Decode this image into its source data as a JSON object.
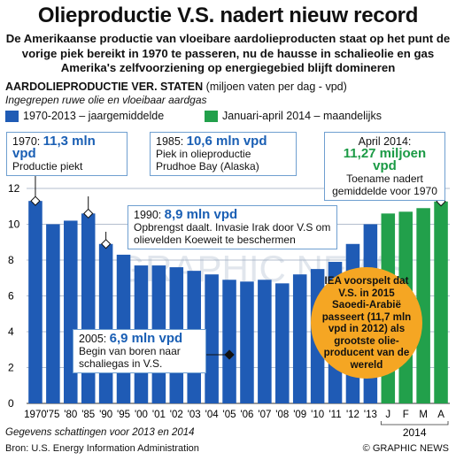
{
  "title": "Olieproductie V.S. nadert nieuw record",
  "subtitle": "De Amerikaanse productie van vloeibare aardolieproducten staat op het punt de vorige piek bereikt in 1970 te passeren, nu de hausse in schalieolie en gas Amerika's zelfvoorziening op energiegebied blijft domineren",
  "chart_heading_bold": "AARDOLIEPRODUCTIE VER. STATEN",
  "chart_heading_unit": "(miljoen vaten per dag - vpd)",
  "chart_subheading": "Ingegrepen ruwe olie en vloeibaar aardgas",
  "legend": [
    {
      "label": "1970-2013 – jaargemiddelde",
      "color": "#1f5bb5"
    },
    {
      "label": "Januari-april 2014 – maandelijks",
      "color": "#22a04b"
    }
  ],
  "callouts": {
    "c1970": {
      "year": "1970:",
      "value": "11,3 mln vpd",
      "text": "Productie piekt"
    },
    "c1985": {
      "year": "1985:",
      "value": "10,6 mln vpd",
      "text": "Piek in olieproductie Prudhoe Bay (Alaska)"
    },
    "c1990": {
      "year": "1990:",
      "value": "8,9 mln vpd",
      "text": "Opbrengst daalt. Invasie Irak door V.S om olievelden Koeweit te beschermen"
    },
    "c2005": {
      "year": "2005:",
      "value": "6,9 mln vpd",
      "text": "Begin van boren naar schaliegas in V.S."
    },
    "c2014": {
      "year": "April 2014:",
      "value": "11,27 miljoen vpd",
      "text": "Toename nadert gemiddelde voor 1970"
    }
  },
  "iea_note": "IEA voorspelt dat V.S. in 2015 Saoedi-Arabië passeert (11,7 mln vpd in 2012) als grootste olie-producent van de wereld",
  "watermark": "GRAPHIC NEWS",
  "footnote": "Gegevens schattingen voor 2013 en 2014",
  "source": "Bron: U.S. Energy Information Administration",
  "credit": "© GRAPHIC NEWS",
  "colors": {
    "blue": "#1f5bb5",
    "green": "#22a04b",
    "grid": "#9aa8bd",
    "accent_blue": "#1a5fb4"
  },
  "chart_data": {
    "type": "bar",
    "ylim": [
      0,
      12
    ],
    "yticks": [
      0,
      2,
      4,
      6,
      8,
      10,
      12
    ],
    "x_tick_labels": [
      "1970",
      "'75",
      "'80",
      "'85",
      "'90",
      "'95",
      "'00",
      "'01",
      "'02",
      "'03",
      "'04",
      "'05",
      "'06",
      "'07",
      "'08",
      "'09",
      "'10",
      "'11",
      "'12",
      "'13",
      "J",
      "F",
      "M",
      "A"
    ],
    "x_group_label": "2014",
    "series": [
      {
        "name": "1970-2013 – jaargemiddelde",
        "color": "#1f5bb5",
        "values": [
          11.3,
          10.0,
          10.2,
          10.6,
          8.9,
          8.3,
          7.7,
          7.7,
          7.6,
          7.4,
          7.2,
          6.9,
          6.8,
          6.9,
          6.7,
          7.2,
          7.5,
          7.9,
          8.9,
          10.0,
          null,
          null,
          null,
          null
        ]
      },
      {
        "name": "Januari-april 2014 – maandelijks",
        "color": "#22a04b",
        "values": [
          null,
          null,
          null,
          null,
          null,
          null,
          null,
          null,
          null,
          null,
          null,
          null,
          null,
          null,
          null,
          null,
          null,
          null,
          null,
          null,
          10.6,
          10.7,
          10.9,
          11.27
        ]
      }
    ]
  }
}
